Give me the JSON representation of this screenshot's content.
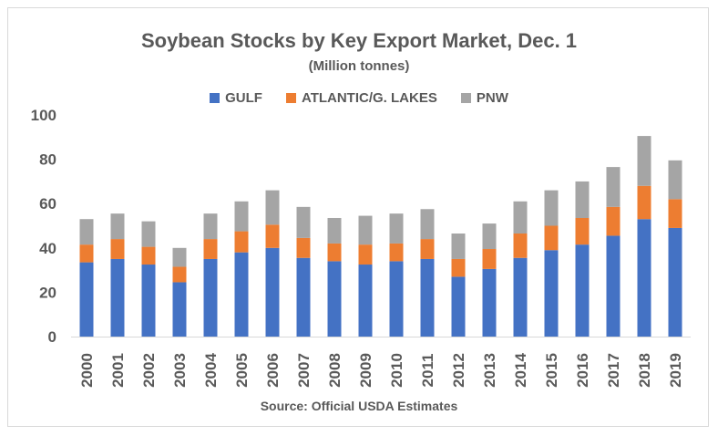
{
  "chart_data": {
    "type": "bar",
    "stacked": true,
    "title": "Soybean Stocks by Key Export Market, Dec. 1",
    "subtitle": "(Million tonnes)",
    "source": "Source: Official USDA Estimates",
    "xlabel": "",
    "ylabel": "",
    "ylim": [
      0,
      100
    ],
    "yticks": [
      0,
      20,
      40,
      60,
      80,
      100
    ],
    "grid": false,
    "legend_position": "top",
    "categories": [
      "2000",
      "2001",
      "2002",
      "2003",
      "2004",
      "2005",
      "2006",
      "2007",
      "2008",
      "2009",
      "2010",
      "2011",
      "2012",
      "2013",
      "2014",
      "2015",
      "2016",
      "2017",
      "2018",
      "2019"
    ],
    "series": [
      {
        "name": "GULF",
        "color": "#4472c4",
        "values": [
          33.5,
          35,
          32.5,
          24.5,
          35,
          38,
          40,
          35.5,
          34,
          32.5,
          34,
          35,
          27,
          30.5,
          35.5,
          39,
          41.5,
          45.5,
          53,
          49
        ]
      },
      {
        "name": "ATLANTIC/G. LAKES",
        "color": "#ed7d31",
        "values": [
          8,
          9,
          8,
          7,
          9,
          9.5,
          10.5,
          9,
          8,
          9,
          8,
          9,
          8,
          9,
          11,
          11,
          12,
          13,
          15,
          13
        ]
      },
      {
        "name": "PNW",
        "color": "#a5a5a5",
        "values": [
          11.5,
          11.5,
          11.5,
          8.5,
          11.5,
          13.5,
          15.5,
          14,
          11.5,
          13,
          13.5,
          13.5,
          11.5,
          11.5,
          14.5,
          16,
          16.5,
          18,
          22.5,
          17.5
        ]
      }
    ]
  }
}
